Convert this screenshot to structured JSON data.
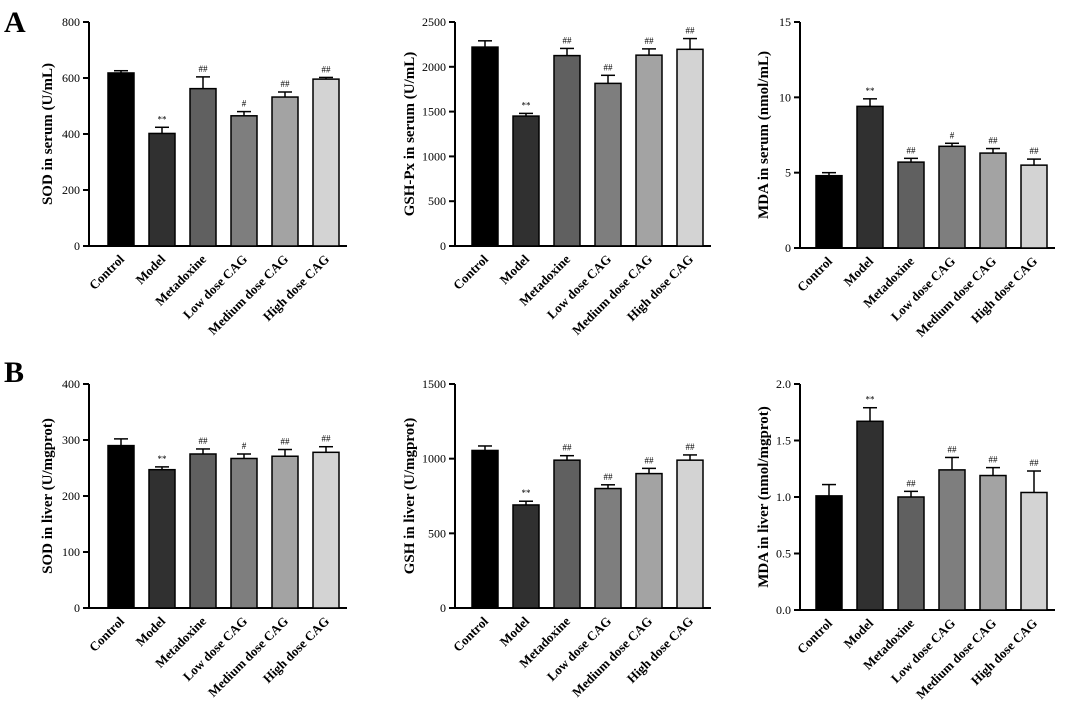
{
  "figure": {
    "panel_labels": [
      "A",
      "B"
    ],
    "bar_colors": [
      "#000000",
      "#303030",
      "#606060",
      "#7e7e7e",
      "#a3a3a3",
      "#d3d3d3"
    ]
  },
  "chart_data": [
    {
      "type": "bar",
      "title": "",
      "ylabel": "SOD in serum (U/mL)",
      "categories": [
        "Control",
        "Model",
        "Metadoxine",
        "Low dose CAG",
        "Medium dose CAG",
        "High dose CAG"
      ],
      "values": [
        618,
        402,
        562,
        465,
        532,
        596
      ],
      "errors": [
        8,
        22,
        42,
        15,
        18,
        6
      ],
      "significance": [
        "",
        "**",
        "##",
        "#",
        "##",
        "##"
      ],
      "ylim": [
        0,
        800
      ],
      "yticks": [
        0,
        200,
        400,
        600,
        800
      ]
    },
    {
      "type": "bar",
      "title": "",
      "ylabel": "GSH-Px in serum (U/mL)",
      "categories": [
        "Control",
        "Model",
        "Metadoxine",
        "Low dose CAG",
        "Medium dose CAG",
        "High dose CAG"
      ],
      "values": [
        2220,
        1450,
        2125,
        1815,
        2130,
        2195
      ],
      "errors": [
        70,
        30,
        80,
        90,
        70,
        120
      ],
      "significance": [
        "",
        "**",
        "##",
        "##",
        "##",
        "##"
      ],
      "ylim": [
        0,
        2500
      ],
      "yticks": [
        0,
        500,
        1000,
        1500,
        2000,
        2500
      ]
    },
    {
      "type": "bar",
      "title": "",
      "ylabel": "MDA in serum (nmol/mL)",
      "categories": [
        "Control",
        "Model",
        "Metadoxine",
        "Low dose CAG",
        "Medium dose CAG",
        "High dose CAG"
      ],
      "values": [
        4.8,
        9.4,
        5.7,
        6.75,
        6.3,
        5.5
      ],
      "errors": [
        0.2,
        0.5,
        0.25,
        0.2,
        0.3,
        0.4
      ],
      "significance": [
        "",
        "**",
        "##",
        "#",
        "##",
        "##"
      ],
      "ylim": [
        0,
        15
      ],
      "yticks": [
        0,
        5,
        10,
        15
      ]
    },
    {
      "type": "bar",
      "title": "",
      "ylabel": "SOD in liver (U/mgprot)",
      "categories": [
        "Control",
        "Model",
        "Metadoxine",
        "Low dose CAG",
        "Medium dose CAG",
        "High dose CAG"
      ],
      "values": [
        290,
        247,
        275,
        267,
        271,
        278
      ],
      "errors": [
        12,
        5,
        9,
        8,
        12,
        10
      ],
      "significance": [
        "",
        "**",
        "##",
        "#",
        "##",
        "##"
      ],
      "ylim": [
        0,
        400
      ],
      "yticks": [
        0,
        100,
        200,
        300,
        400
      ]
    },
    {
      "type": "bar",
      "title": "",
      "ylabel": "GSH in liver (U/mgprot)",
      "categories": [
        "Control",
        "Model",
        "Metadoxine",
        "Low dose CAG",
        "Medium dose CAG",
        "High dose CAG"
      ],
      "values": [
        1055,
        690,
        990,
        800,
        900,
        990
      ],
      "errors": [
        30,
        25,
        30,
        25,
        35,
        35
      ],
      "significance": [
        "",
        "**",
        "##",
        "##",
        "##",
        "##"
      ],
      "ylim": [
        0,
        1500
      ],
      "yticks": [
        0,
        500,
        1000,
        1500
      ]
    },
    {
      "type": "bar",
      "title": "",
      "ylabel": "MDA in liver (nmol/mgprot)",
      "categories": [
        "Control",
        "Model",
        "Metadoxine",
        "Low dose CAG",
        "Medium dose CAG",
        "High dose CAG"
      ],
      "values": [
        1.01,
        1.67,
        1.0,
        1.24,
        1.19,
        1.04
      ],
      "errors": [
        0.1,
        0.12,
        0.05,
        0.11,
        0.07,
        0.19
      ],
      "significance": [
        "",
        "**",
        "##",
        "##",
        "##",
        "##"
      ],
      "ylim": [
        0,
        2.0
      ],
      "yticks": [
        "0.0",
        "0.5",
        "1.0",
        "1.5",
        "2.0"
      ]
    }
  ]
}
